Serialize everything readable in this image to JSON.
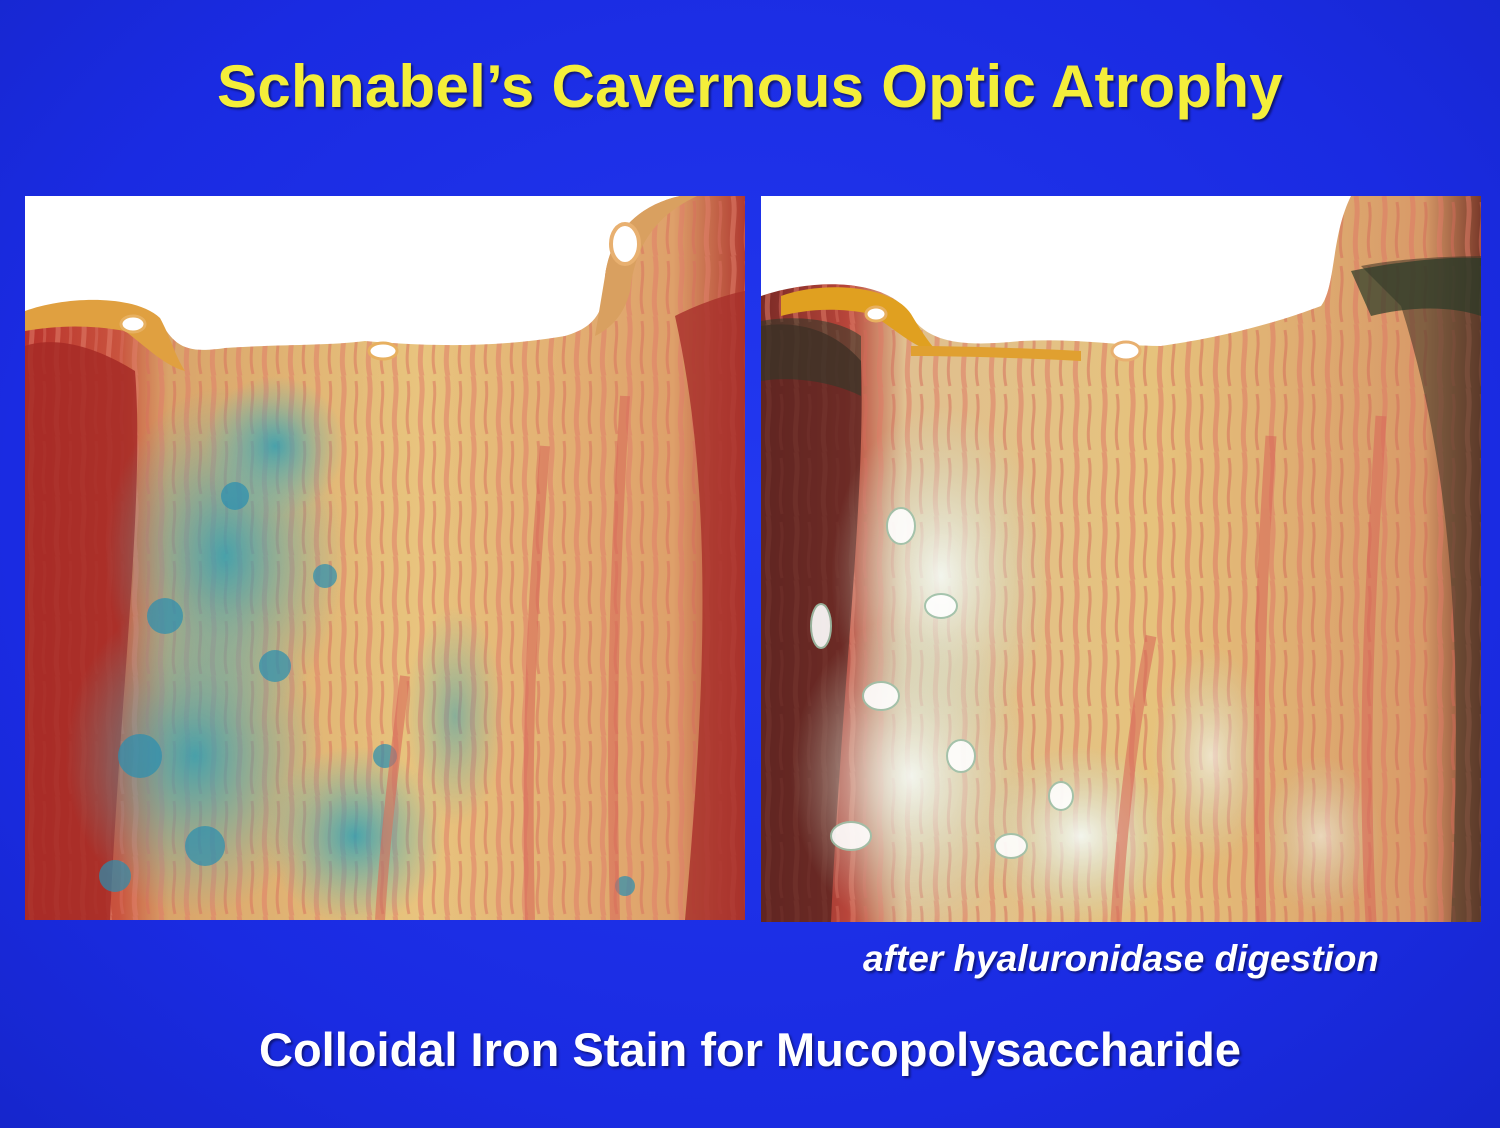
{
  "slide": {
    "title": "Schnabel’s Cavernous Optic Atrophy",
    "right_panel_caption": "after hyaluronidase digestion",
    "subtitle": "Colloidal Iron Stain for Mucopolysaccharide",
    "colors": {
      "background": "#1a2ee6",
      "title": "#f4ee3a",
      "text": "#ffffff"
    }
  }
}
